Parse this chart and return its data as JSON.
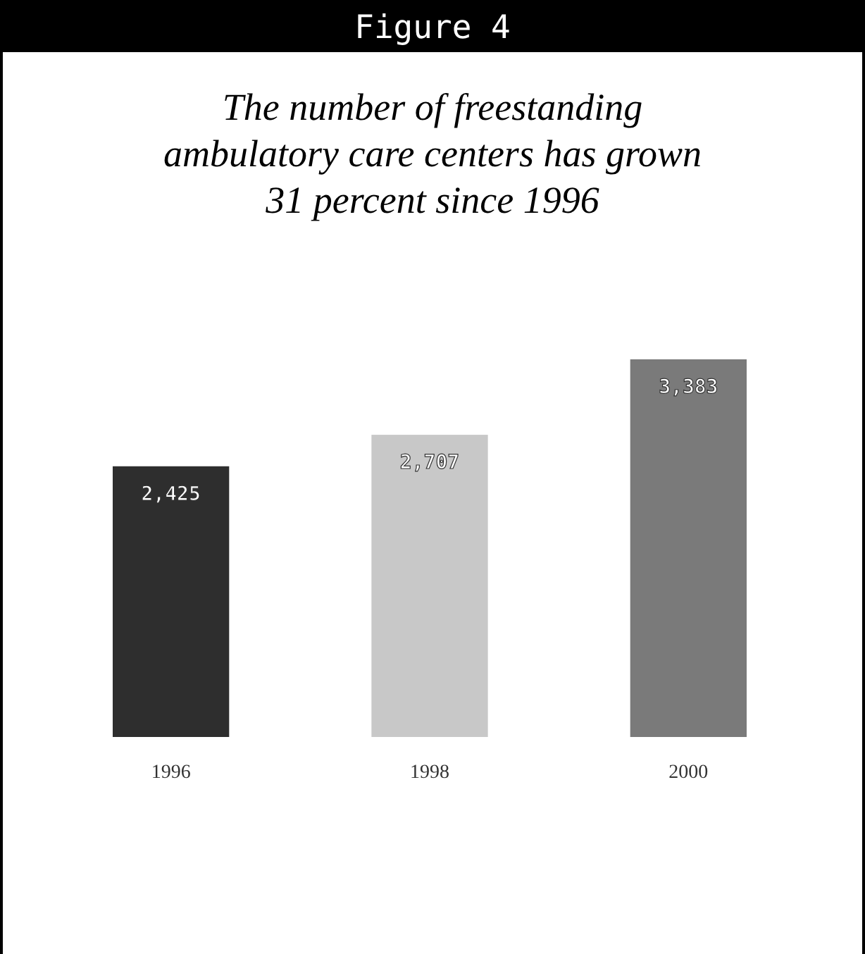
{
  "chart_data": {
    "type": "bar",
    "title": "Figure 4",
    "subtitle": "The number of freestanding ambulatory care centers has grown 31 percent since 1996",
    "categories": [
      "1996",
      "1998",
      "2000"
    ],
    "values": [
      2425,
      2707,
      3383
    ],
    "colors": [
      "#2e2e2e",
      "#c8c8c8",
      "#7a7a7a"
    ],
    "value_labels": [
      "2,425",
      "2,707",
      "3,383"
    ]
  }
}
